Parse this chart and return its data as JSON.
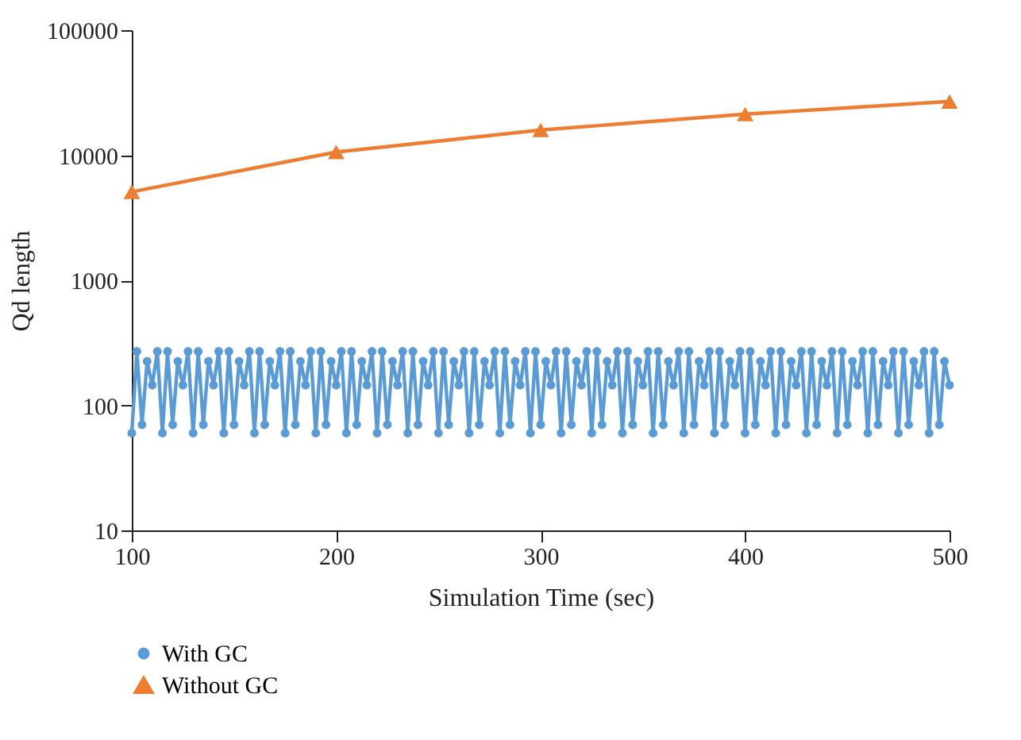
{
  "chart_data": {
    "type": "line",
    "xlabel": "Simulation Time (sec)",
    "ylabel": "Qd length",
    "log": "y",
    "xlim": [
      100,
      500
    ],
    "xticks": [
      100,
      200,
      300,
      400,
      500
    ],
    "ylim": [
      10,
      100000
    ],
    "yticks": [
      10,
      100,
      1000,
      10000,
      100000
    ],
    "grid": false,
    "legend": "bottom left",
    "line_style": "solid",
    "series": [
      {
        "name": "With GC",
        "color": "#5b9bd5",
        "marker": "circle",
        "x": [
          100,
          102.5,
          105,
          107.5,
          110,
          112.5,
          115,
          117.5,
          120,
          122.5,
          125,
          127.5,
          130,
          132.5,
          135,
          137.5,
          140,
          142.5,
          145,
          147.5,
          150,
          152.5,
          155,
          157.5,
          160,
          162.5,
          165,
          167.5,
          170,
          172.5,
          175,
          177.5,
          180,
          182.5,
          185,
          187.5,
          190,
          192.5,
          195,
          197.5,
          200,
          202.5,
          205,
          207.5,
          210,
          212.5,
          215,
          217.5,
          220,
          222.5,
          225,
          227.5,
          230,
          232.5,
          235,
          237.5,
          240,
          242.5,
          245,
          247.5,
          250,
          252.5,
          255,
          257.5,
          260,
          262.5,
          265,
          267.5,
          270,
          272.5,
          275,
          277.5,
          280,
          282.5,
          285,
          287.5,
          290,
          292.5,
          295,
          297.5,
          300,
          302.5,
          305,
          307.5,
          310,
          312.5,
          315,
          317.5,
          320,
          322.5,
          325,
          327.5,
          330,
          332.5,
          335,
          337.5,
          340,
          342.5,
          345,
          347.5,
          350,
          352.5,
          355,
          357.5,
          360,
          362.5,
          365,
          367.5,
          370,
          372.5,
          375,
          377.5,
          380,
          382.5,
          385,
          387.5,
          390,
          392.5,
          395,
          397.5,
          400,
          402.5,
          405,
          407.5,
          410,
          412.5,
          415,
          417.5,
          420,
          422.5,
          425,
          427.5,
          430,
          432.5,
          435,
          437.5,
          440,
          442.5,
          445,
          447.5,
          450,
          452.5,
          455,
          457.5,
          460,
          462.5,
          465,
          467.5,
          470,
          472.5,
          475,
          477.5,
          480,
          482.5,
          485,
          487.5,
          490,
          492.5,
          495,
          497.5,
          500
        ],
        "values": [
          60,
          270,
          70,
          225,
          145,
          270,
          60,
          270,
          70,
          225,
          145,
          270,
          60,
          270,
          70,
          225,
          145,
          270,
          60,
          270,
          70,
          225,
          145,
          270,
          60,
          270,
          70,
          225,
          145,
          270,
          60,
          270,
          70,
          225,
          145,
          270,
          60,
          270,
          70,
          225,
          145,
          270,
          60,
          270,
          70,
          225,
          145,
          270,
          60,
          270,
          70,
          225,
          145,
          270,
          60,
          270,
          70,
          225,
          145,
          270,
          60,
          270,
          70,
          225,
          145,
          270,
          60,
          270,
          70,
          225,
          145,
          270,
          60,
          270,
          70,
          225,
          145,
          270,
          60,
          270,
          70,
          225,
          145,
          270,
          60,
          270,
          70,
          225,
          145,
          270,
          60,
          270,
          70,
          225,
          145,
          270,
          60,
          270,
          70,
          225,
          145,
          270,
          60,
          270,
          70,
          225,
          145,
          270,
          60,
          270,
          70,
          225,
          145,
          270,
          60,
          270,
          70,
          225,
          145,
          270,
          60,
          270,
          70,
          225,
          145,
          270,
          60,
          270,
          70,
          225,
          145,
          270,
          60,
          270,
          70,
          225,
          145,
          270,
          60,
          270,
          70,
          225,
          145,
          270,
          60,
          270,
          70,
          225,
          145,
          270,
          60,
          270,
          70,
          225,
          145,
          270,
          60,
          270,
          70,
          225,
          145
        ]
      },
      {
        "name": "Without GC",
        "color": "#ed7d31",
        "marker": "triangle",
        "x": [
          100,
          200,
          300,
          400,
          500
        ],
        "values": [
          5100,
          10600,
          15900,
          21300,
          26900
        ]
      }
    ]
  }
}
